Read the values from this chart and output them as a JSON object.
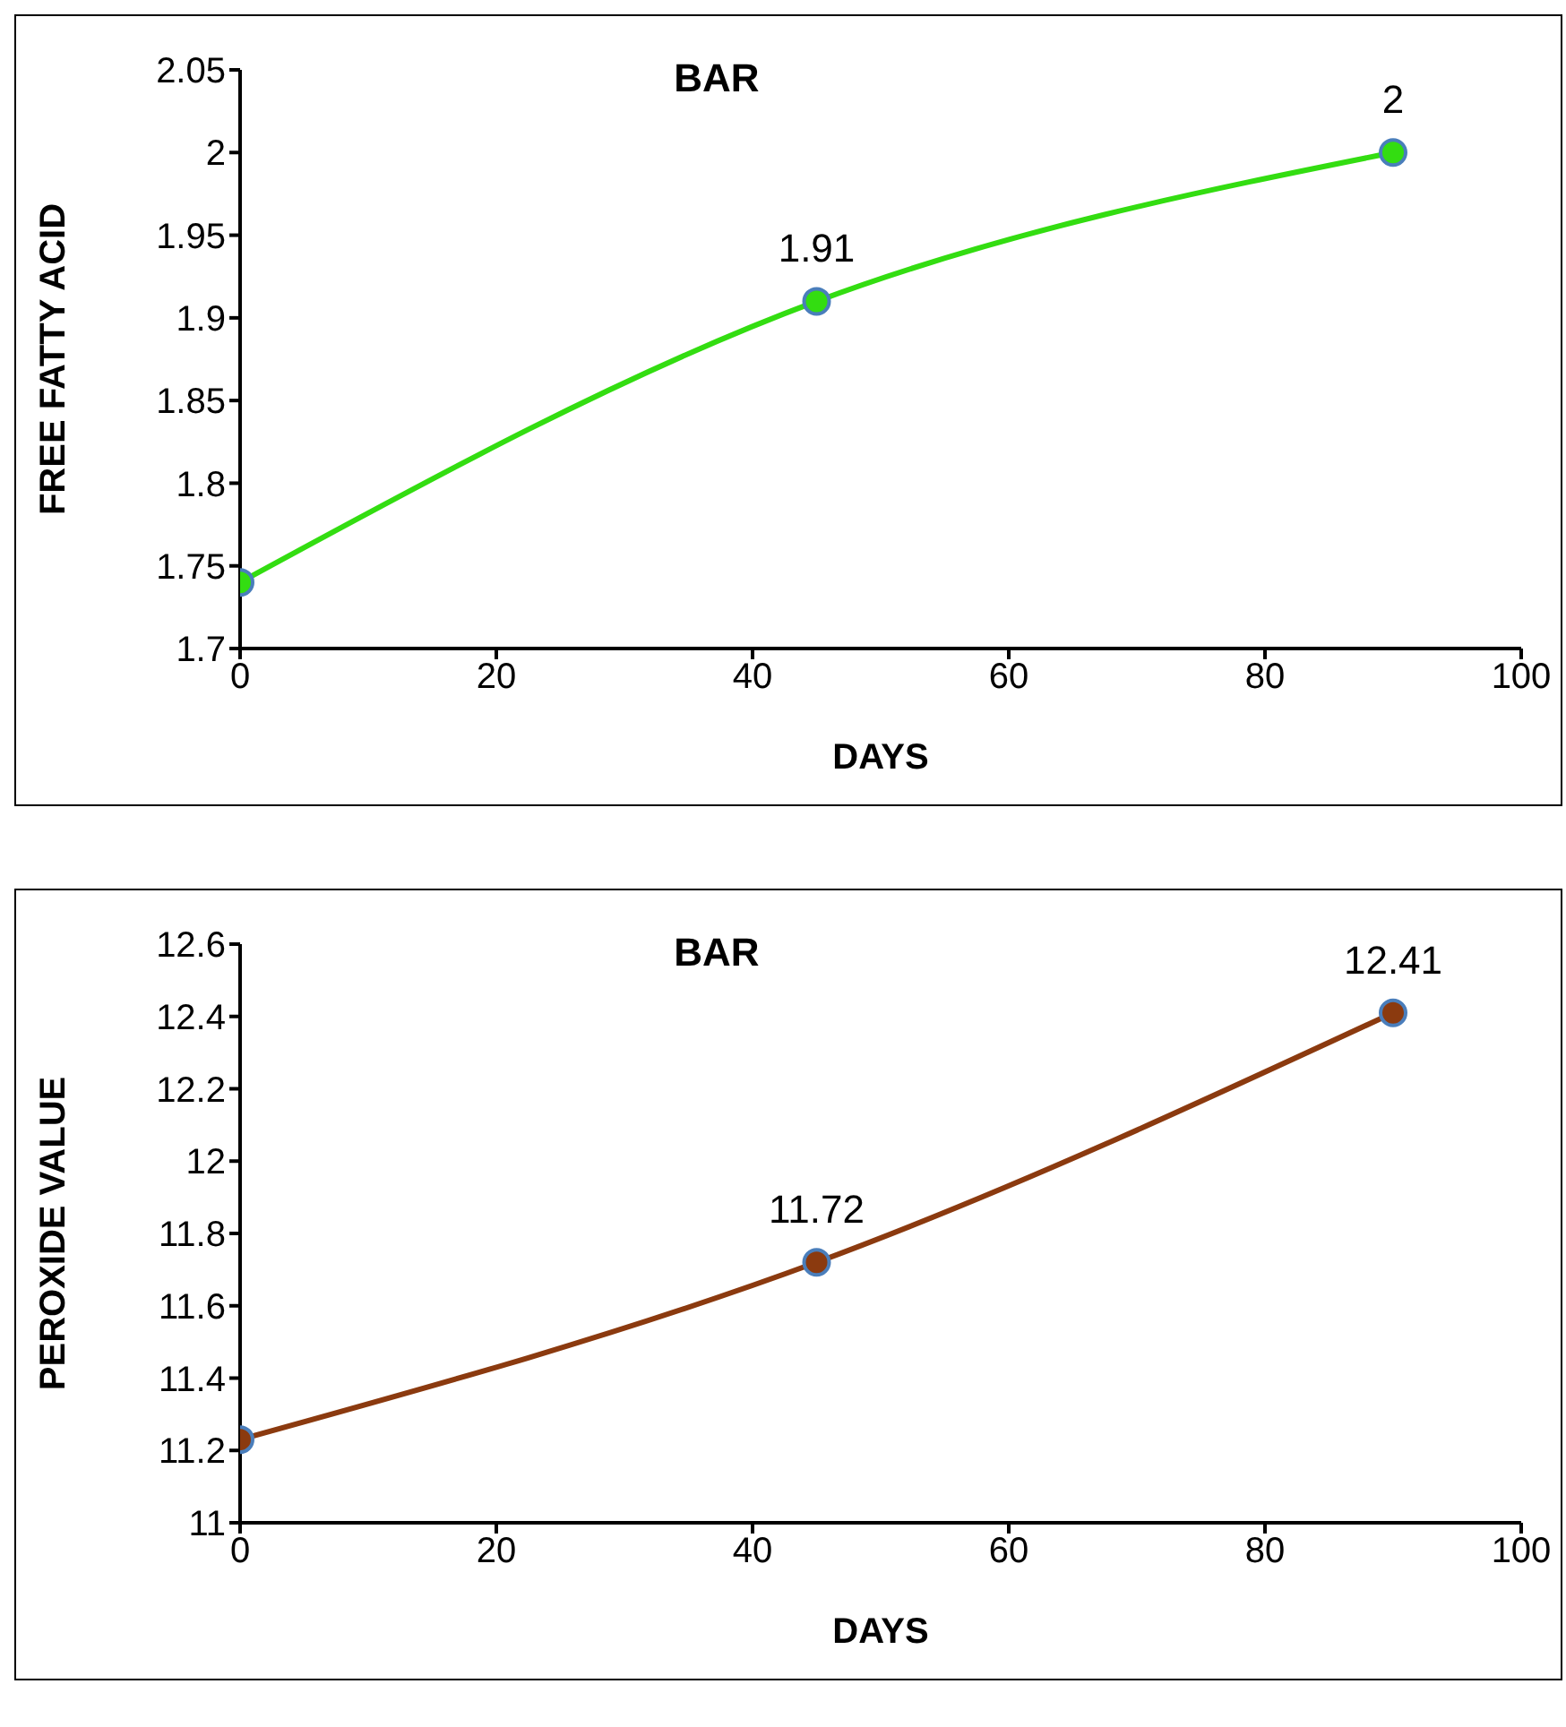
{
  "chart_data": [
    {
      "type": "line",
      "title": "BAR",
      "xlabel": "DAYS",
      "ylabel": "FREE FATTY ACID",
      "x": [
        0,
        45,
        90
      ],
      "series": [
        {
          "color": "#33dd11",
          "values": [
            1.74,
            1.91,
            2
          ],
          "value_labels": [
            null,
            "1.91",
            "2"
          ]
        }
      ],
      "xlim": [
        0,
        100
      ],
      "xticks": [
        0,
        20,
        40,
        60,
        80,
        100
      ],
      "ylim": [
        1.7,
        2.05
      ],
      "yticks": [
        1.7,
        1.75,
        1.8,
        1.85,
        1.9,
        1.95,
        2,
        2.05
      ],
      "grid": false,
      "legend": false,
      "marker": "circle",
      "line_style": "solid"
    },
    {
      "type": "line",
      "title": "BAR",
      "xlabel": "DAYS",
      "ylabel": "PEROXIDE VALUE",
      "x": [
        0,
        45,
        90
      ],
      "series": [
        {
          "color": "#8b3a0f",
          "values": [
            11.23,
            11.72,
            12.41
          ],
          "value_labels": [
            null,
            "11.72",
            "12.41"
          ]
        }
      ],
      "xlim": [
        0,
        100
      ],
      "xticks": [
        0,
        20,
        40,
        60,
        80,
        100
      ],
      "ylim": [
        11,
        12.6
      ],
      "yticks": [
        11,
        11.2,
        11.4,
        11.6,
        11.8,
        12,
        12.2,
        12.4,
        12.6
      ],
      "grid": false,
      "legend": false,
      "marker": "circle",
      "line_style": "solid"
    }
  ]
}
